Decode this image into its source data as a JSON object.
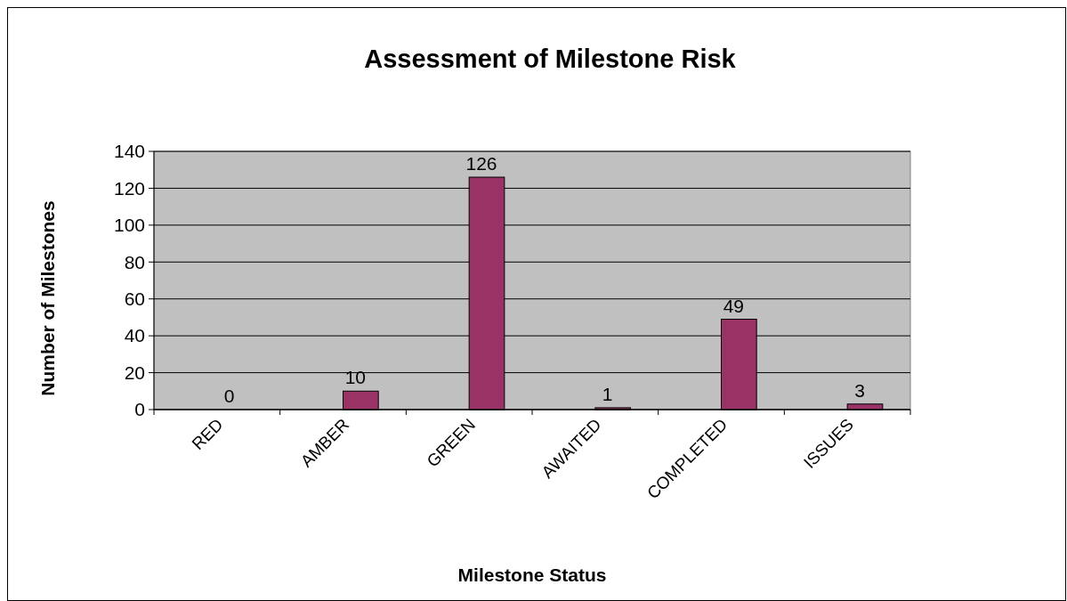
{
  "chart_data": {
    "type": "bar",
    "title": "Assessment of Milestone Risk",
    "xlabel": "Milestone Status",
    "ylabel": "Number of Milestones",
    "categories": [
      "RED",
      "AMBER",
      "GREEN",
      "AWAITED",
      "COMPLETED",
      "ISSUES"
    ],
    "values": [
      0,
      10,
      126,
      1,
      49,
      3
    ],
    "color": "#993366",
    "ylim": [
      0,
      140
    ],
    "yticks": [
      0,
      20,
      40,
      60,
      80,
      100,
      120,
      140
    ],
    "grid": "y",
    "data_labels": true
  }
}
